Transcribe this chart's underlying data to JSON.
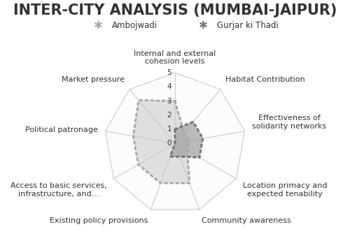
{
  "title": "INTER-CITY ANALYSIS (MUMBAI-JAIPUR)",
  "categories": [
    "Internal and external\ncohesion levels",
    "Habitat Contribution",
    "Effectiveness of\nsolidarity networks",
    "Location primacy and\nexpected tenability",
    "Community awareness",
    "Existing policy provisions",
    "Access to basic services,\ninfrastructure, and...",
    "Political patronage",
    "Market pressure"
  ],
  "series": [
    {
      "label": "Ambojwadi",
      "values": [
        3,
        1,
        1,
        1,
        3,
        3,
        3,
        3,
        4
      ],
      "color": "#c8c8c8",
      "fill_alpha": 0.55,
      "linestyle": "dotted",
      "linewidth": 2.2,
      "dot_color": "#aaaaaa"
    },
    {
      "label": "Gurjar ki Thadi",
      "values": [
        1,
        2,
        2,
        2,
        1,
        1,
        0,
        0,
        0
      ],
      "color": "#999999",
      "fill_alpha": 0.65,
      "linestyle": "dotted",
      "linewidth": 2.2,
      "dot_color": "#777777"
    }
  ],
  "max_val": 5,
  "tick_vals": [
    0,
    1,
    2,
    3,
    4,
    5
  ],
  "background_color": "#ffffff",
  "grid_color": "#cccccc",
  "grid_fill_colors": [
    "#f0f0f0",
    "#f5f5f5",
    "#f8f8f8",
    "#fafafa",
    "#fcfcfc"
  ],
  "title_fontsize": 15,
  "label_fontsize": 8.0
}
